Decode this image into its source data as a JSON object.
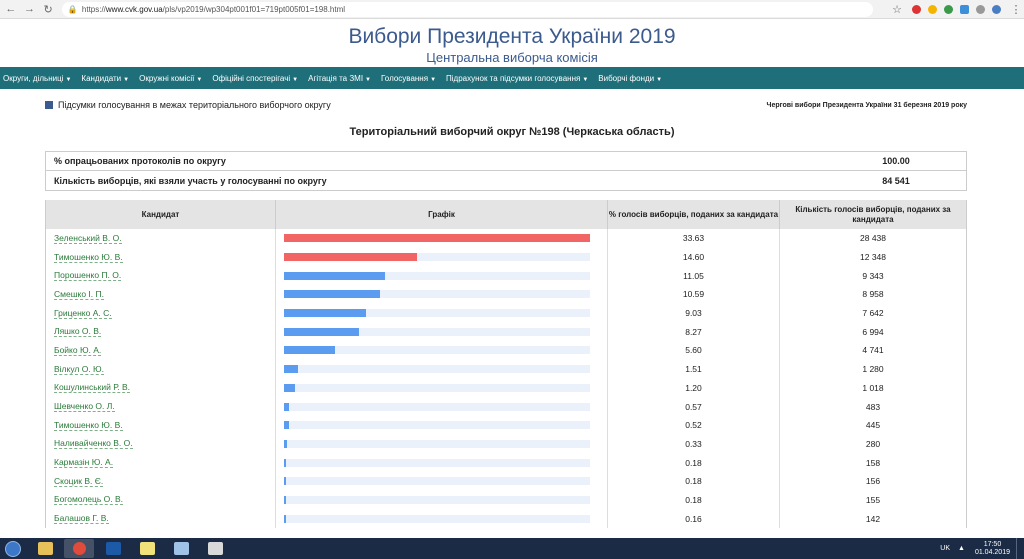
{
  "browser": {
    "url_scheme": "https://",
    "url_host": "www.cvk.gov.ua",
    "url_path": "/pls/vp2019/wp304pt001f01=719pt005f01=198.html"
  },
  "header": {
    "title": "Вибори Президента України 2019",
    "subtitle": "Центральна виборча комісія"
  },
  "menu": [
    {
      "label": "Округи, дільниці"
    },
    {
      "label": "Кандидати"
    },
    {
      "label": "Окружні комісії"
    },
    {
      "label": "Офіційні спостерігачі"
    },
    {
      "label": "Агітація та ЗМІ"
    },
    {
      "label": "Голосування"
    },
    {
      "label": "Підрахунок та підсумки голосування"
    },
    {
      "label": "Виборчі фонди"
    }
  ],
  "info": {
    "section_title": "Підсумки голосування в межах територіального виборчого округу",
    "election_name": "Чергові вибори Президента України 31 березня 2019 року"
  },
  "district_title": "Територіальний виборчий округ №198 (Черкаська область)",
  "summary": {
    "protocols_label": "% опрацьованих протоколів по округу",
    "protocols_value": "100.00",
    "voters_label": "Кількість виборців, які взяли участь у голосуванні по округу",
    "voters_value": "84 541"
  },
  "table": {
    "headers": {
      "candidate": "Кандидат",
      "chart": "Графік",
      "percent": "% голосів виборців, поданих за кандидата",
      "count": "Кількість голосів виборців, поданих за кандидата"
    },
    "rows": [
      {
        "name": "Зеленський В. О.",
        "percent": "33.63",
        "count": "28 438",
        "pct": 33.63,
        "color": "#f26565"
      },
      {
        "name": "Тимошенко Ю. В.",
        "percent": "14.60",
        "count": "12 348",
        "pct": 14.6,
        "color": "#f26565"
      },
      {
        "name": "Порошенко П. О.",
        "percent": "11.05",
        "count": "9 343",
        "pct": 11.05,
        "color": "#5b9cf0"
      },
      {
        "name": "Смешко І. П.",
        "percent": "10.59",
        "count": "8 958",
        "pct": 10.59,
        "color": "#5b9cf0"
      },
      {
        "name": "Гриценко А. С.",
        "percent": "9.03",
        "count": "7 642",
        "pct": 9.03,
        "color": "#5b9cf0"
      },
      {
        "name": "Ляшко О. В.",
        "percent": "8.27",
        "count": "6 994",
        "pct": 8.27,
        "color": "#5b9cf0"
      },
      {
        "name": "Бойко Ю. А.",
        "percent": "5.60",
        "count": "4 741",
        "pct": 5.6,
        "color": "#5b9cf0"
      },
      {
        "name": "Вілкул О. Ю.",
        "percent": "1.51",
        "count": "1 280",
        "pct": 1.51,
        "color": "#5b9cf0"
      },
      {
        "name": "Кошулинський Р. В.",
        "percent": "1.20",
        "count": "1 018",
        "pct": 1.2,
        "color": "#5b9cf0"
      },
      {
        "name": "Шевченко О. Л.",
        "percent": "0.57",
        "count": "483",
        "pct": 0.57,
        "color": "#5b9cf0"
      },
      {
        "name": "Тимошенко Ю. В.",
        "percent": "0.52",
        "count": "445",
        "pct": 0.52,
        "color": "#5b9cf0"
      },
      {
        "name": "Наливайченко В. О.",
        "percent": "0.33",
        "count": "280",
        "pct": 0.33,
        "color": "#5b9cf0"
      },
      {
        "name": "Кармазін Ю. А.",
        "percent": "0.18",
        "count": "158",
        "pct": 0.18,
        "color": "#5b9cf0"
      },
      {
        "name": "Скоцик В. Є.",
        "percent": "0.18",
        "count": "156",
        "pct": 0.18,
        "color": "#5b9cf0"
      },
      {
        "name": "Богомолець О. В.",
        "percent": "0.18",
        "count": "155",
        "pct": 0.18,
        "color": "#5b9cf0"
      },
      {
        "name": "Балашов Г. В.",
        "percent": "0.16",
        "count": "142",
        "pct": 0.16,
        "color": "#5b9cf0"
      }
    ]
  },
  "taskbar": {
    "lang": "UK",
    "time": "17:50",
    "date": "01.04.2019"
  }
}
